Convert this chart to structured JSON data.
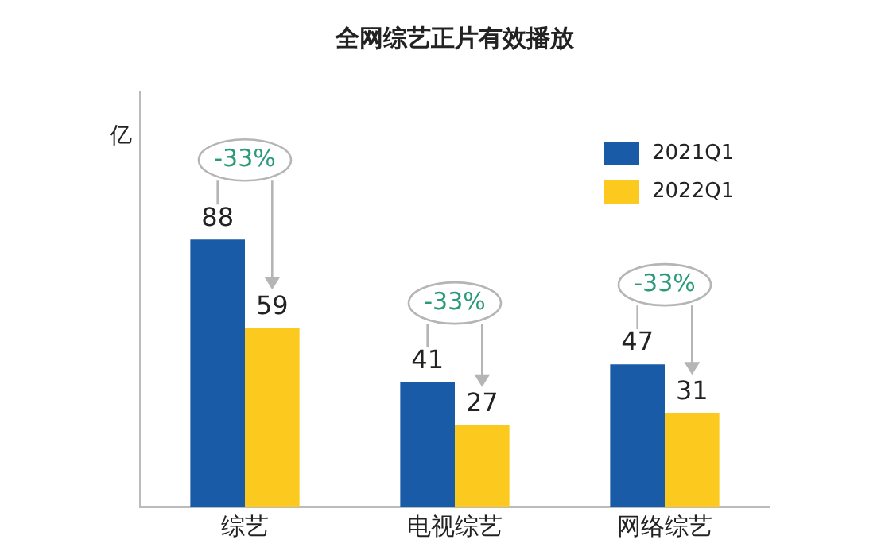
{
  "chart_data": {
    "type": "bar",
    "title": "全网综艺正片有效播放",
    "ylabel": "亿",
    "categories": [
      "综艺",
      "电视综艺",
      "网络综艺"
    ],
    "series": [
      {
        "name": "2021Q1",
        "color": "#1a5ba8",
        "values": [
          88,
          41,
          47
        ]
      },
      {
        "name": "2022Q1",
        "color": "#fcc91f",
        "values": [
          59,
          27,
          31
        ]
      }
    ],
    "annotations": [
      "-33%",
      "-33%",
      "-33%"
    ],
    "data_labels": true,
    "legend": "top right",
    "grid": false,
    "tick_labels": "x"
  }
}
